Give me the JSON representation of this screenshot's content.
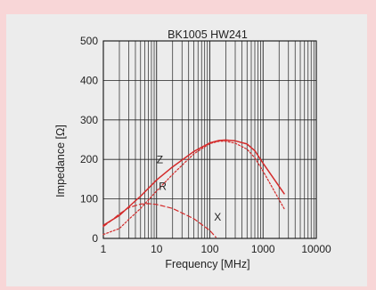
{
  "chart_data": {
    "type": "line",
    "title": "BK1005 HW241",
    "xlabel": "Frequency [MHz]",
    "ylabel": "Impedance [Ω]",
    "x_scale": "log",
    "xlim": [
      1,
      10000
    ],
    "ylim": [
      0,
      500
    ],
    "x_ticks": [
      {
        "value": 1,
        "label": "1"
      },
      {
        "value": 10,
        "label": "10"
      },
      {
        "value": 100,
        "label": "100"
      },
      {
        "value": 1000,
        "label": "1000"
      },
      {
        "value": 10000,
        "label": "10000"
      }
    ],
    "y_ticks": [
      {
        "value": 0,
        "label": "0"
      },
      {
        "value": 100,
        "label": "100"
      },
      {
        "value": 200,
        "label": "200"
      },
      {
        "value": 300,
        "label": "300"
      },
      {
        "value": 400,
        "label": "400"
      },
      {
        "value": 500,
        "label": "500"
      }
    ],
    "grid": true,
    "series": [
      {
        "name": "Z",
        "style": "solid",
        "color": "#d42a2a",
        "x": [
          1,
          2,
          3,
          5,
          10,
          20,
          50,
          100,
          150,
          200,
          300,
          500,
          700,
          1000,
          2500
        ],
        "y": [
          33,
          58,
          80,
          107,
          148,
          181,
          220,
          242,
          248,
          249,
          247,
          239,
          222,
          190,
          113
        ]
      },
      {
        "name": "R",
        "style": "dotted",
        "color": "#d42a2a",
        "x": [
          1,
          2,
          3,
          5,
          10,
          20,
          50,
          100,
          150,
          200,
          300,
          500,
          700,
          1000,
          2500
        ],
        "y": [
          10,
          25,
          48,
          76,
          120,
          162,
          214,
          240,
          246,
          246,
          241,
          226,
          204,
          170,
          75
        ]
      },
      {
        "name": "X",
        "style": "dashed",
        "color": "#d42a2a",
        "x": [
          1,
          1.5,
          2,
          3,
          5,
          7,
          10,
          20,
          50,
          100,
          130
        ],
        "y": [
          30,
          48,
          62,
          78,
          87,
          88,
          86,
          76,
          50,
          20,
          3
        ]
      }
    ]
  }
}
